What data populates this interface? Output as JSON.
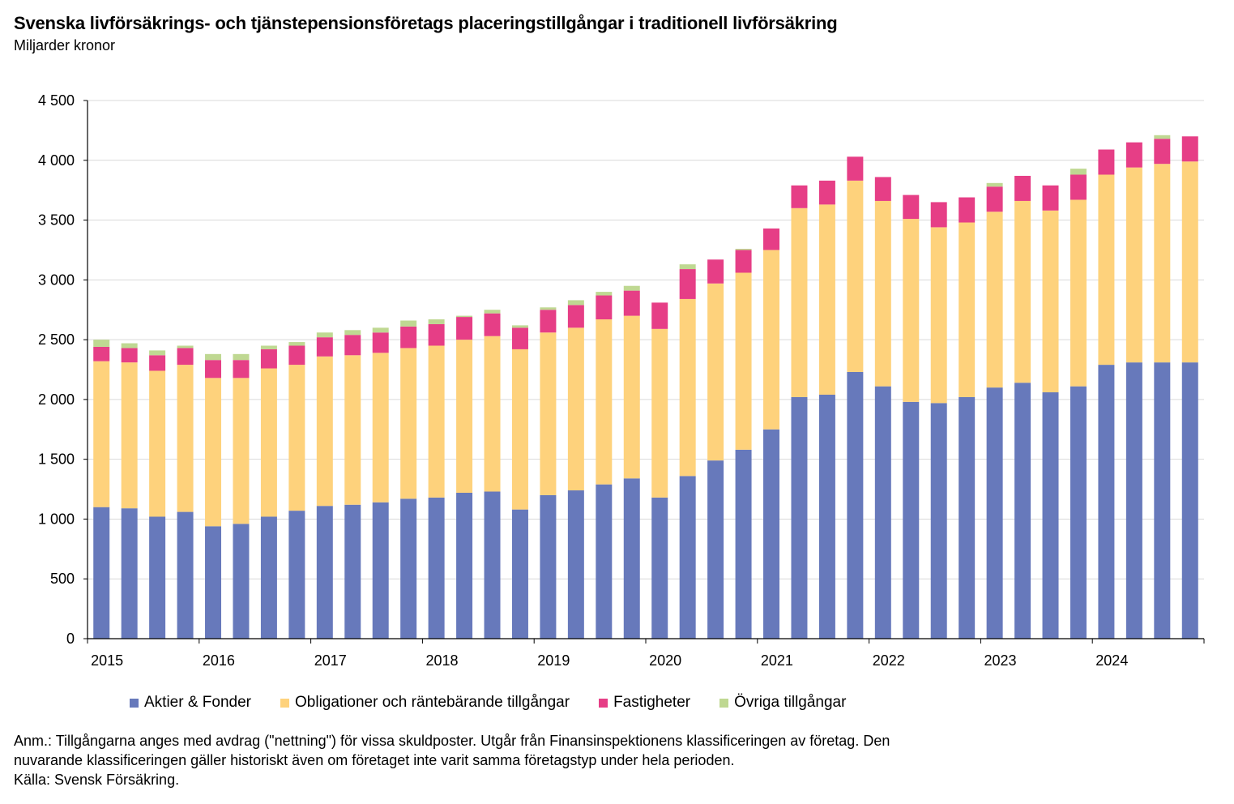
{
  "title": "Svenska livförsäkrings- och tjänstepensionsföretags placeringstillgångar i traditionell livförsäkring",
  "subtitle": "Miljarder kronor",
  "legend": {
    "s0": "Aktier & Fonder",
    "s1": "Obligationer och räntebärande tillgångar",
    "s2": "Fastigheter",
    "s3": "Övriga tillgångar"
  },
  "notes": {
    "line1": "Anm.: Tillgångarna anges med avdrag (\"nettning\") för vissa skuldposter. Utgår från Finansinspektionens klassificeringen av företag. Den",
    "line2": "nuvarande  klassificeringen gäller historiskt även om företaget inte varit samma företagstyp under hela perioden.",
    "line3": "Källa: Svensk Försäkring."
  },
  "chart_data": {
    "type": "bar",
    "stacked": true,
    "title": "Svenska livförsäkrings- och tjänstepensionsföretags placeringstillgångar i traditionell livförsäkring",
    "ylabel": "Miljarder kronor",
    "ylim": [
      0,
      4500
    ],
    "yticks": [
      0,
      500,
      1000,
      1500,
      2000,
      2500,
      3000,
      3500,
      4000,
      4500
    ],
    "ytick_labels": [
      "0",
      "500",
      "1 000",
      "1 500",
      "2 000",
      "2 500",
      "3 000",
      "3 500",
      "4 000",
      "4 500"
    ],
    "xtick_labels": [
      "2015",
      "2016",
      "2017",
      "2018",
      "2019",
      "2020",
      "2021",
      "2022",
      "2023",
      "2024"
    ],
    "categories": [
      "2015Q1",
      "2015Q2",
      "2015Q3",
      "2015Q4",
      "2016Q1",
      "2016Q2",
      "2016Q3",
      "2016Q4",
      "2017Q1",
      "2017Q2",
      "2017Q3",
      "2017Q4",
      "2018Q1",
      "2018Q2",
      "2018Q3",
      "2018Q4",
      "2019Q1",
      "2019Q2",
      "2019Q3",
      "2019Q4",
      "2020Q1",
      "2020Q2",
      "2020Q3",
      "2020Q4",
      "2021Q1",
      "2021Q2",
      "2021Q3",
      "2021Q4",
      "2022Q1",
      "2022Q2",
      "2022Q3",
      "2022Q4",
      "2023Q1",
      "2023Q2",
      "2023Q3",
      "2023Q4",
      "2024Q1",
      "2024Q2",
      "2024Q3",
      "2024Q4"
    ],
    "grid": true,
    "legend_position": "bottom",
    "series": [
      {
        "name": "Aktier & Fonder",
        "color": "#6779BB",
        "values": [
          1100,
          1090,
          1020,
          1060,
          940,
          960,
          1020,
          1070,
          1110,
          1120,
          1140,
          1170,
          1180,
          1220,
          1230,
          1080,
          1200,
          1240,
          1290,
          1340,
          1180,
          1360,
          1490,
          1580,
          1750,
          2020,
          2040,
          2230,
          2110,
          1980,
          1970,
          2020,
          2100,
          2140,
          2060,
          2110,
          2290,
          2310,
          2310,
          2310
        ]
      },
      {
        "name": "Obligationer och räntebärande tillgångar",
        "color": "#FED27C",
        "values": [
          1220,
          1220,
          1220,
          1230,
          1240,
          1220,
          1240,
          1220,
          1250,
          1250,
          1250,
          1260,
          1270,
          1280,
          1300,
          1340,
          1360,
          1360,
          1380,
          1360,
          1410,
          1480,
          1480,
          1480,
          1500,
          1580,
          1590,
          1600,
          1550,
          1530,
          1470,
          1460,
          1470,
          1520,
          1520,
          1560,
          1590,
          1630,
          1660,
          1680
        ]
      },
      {
        "name": "Fastigheter",
        "color": "#E63E86",
        "values": [
          120,
          120,
          130,
          140,
          150,
          150,
          160,
          160,
          160,
          170,
          170,
          180,
          180,
          190,
          190,
          180,
          190,
          190,
          200,
          210,
          220,
          250,
          200,
          190,
          180,
          190,
          200,
          200,
          200,
          200,
          210,
          210,
          210,
          210,
          210,
          210,
          210,
          210,
          210,
          210
        ]
      },
      {
        "name": "Övriga tillgångar",
        "color": "#BFD892",
        "values": [
          60,
          40,
          40,
          20,
          50,
          50,
          30,
          30,
          40,
          40,
          40,
          50,
          40,
          10,
          30,
          20,
          20,
          40,
          30,
          40,
          0,
          40,
          0,
          10,
          0,
          0,
          0,
          0,
          0,
          0,
          0,
          0,
          30,
          0,
          0,
          50,
          0,
          0,
          30,
          0
        ]
      }
    ]
  }
}
